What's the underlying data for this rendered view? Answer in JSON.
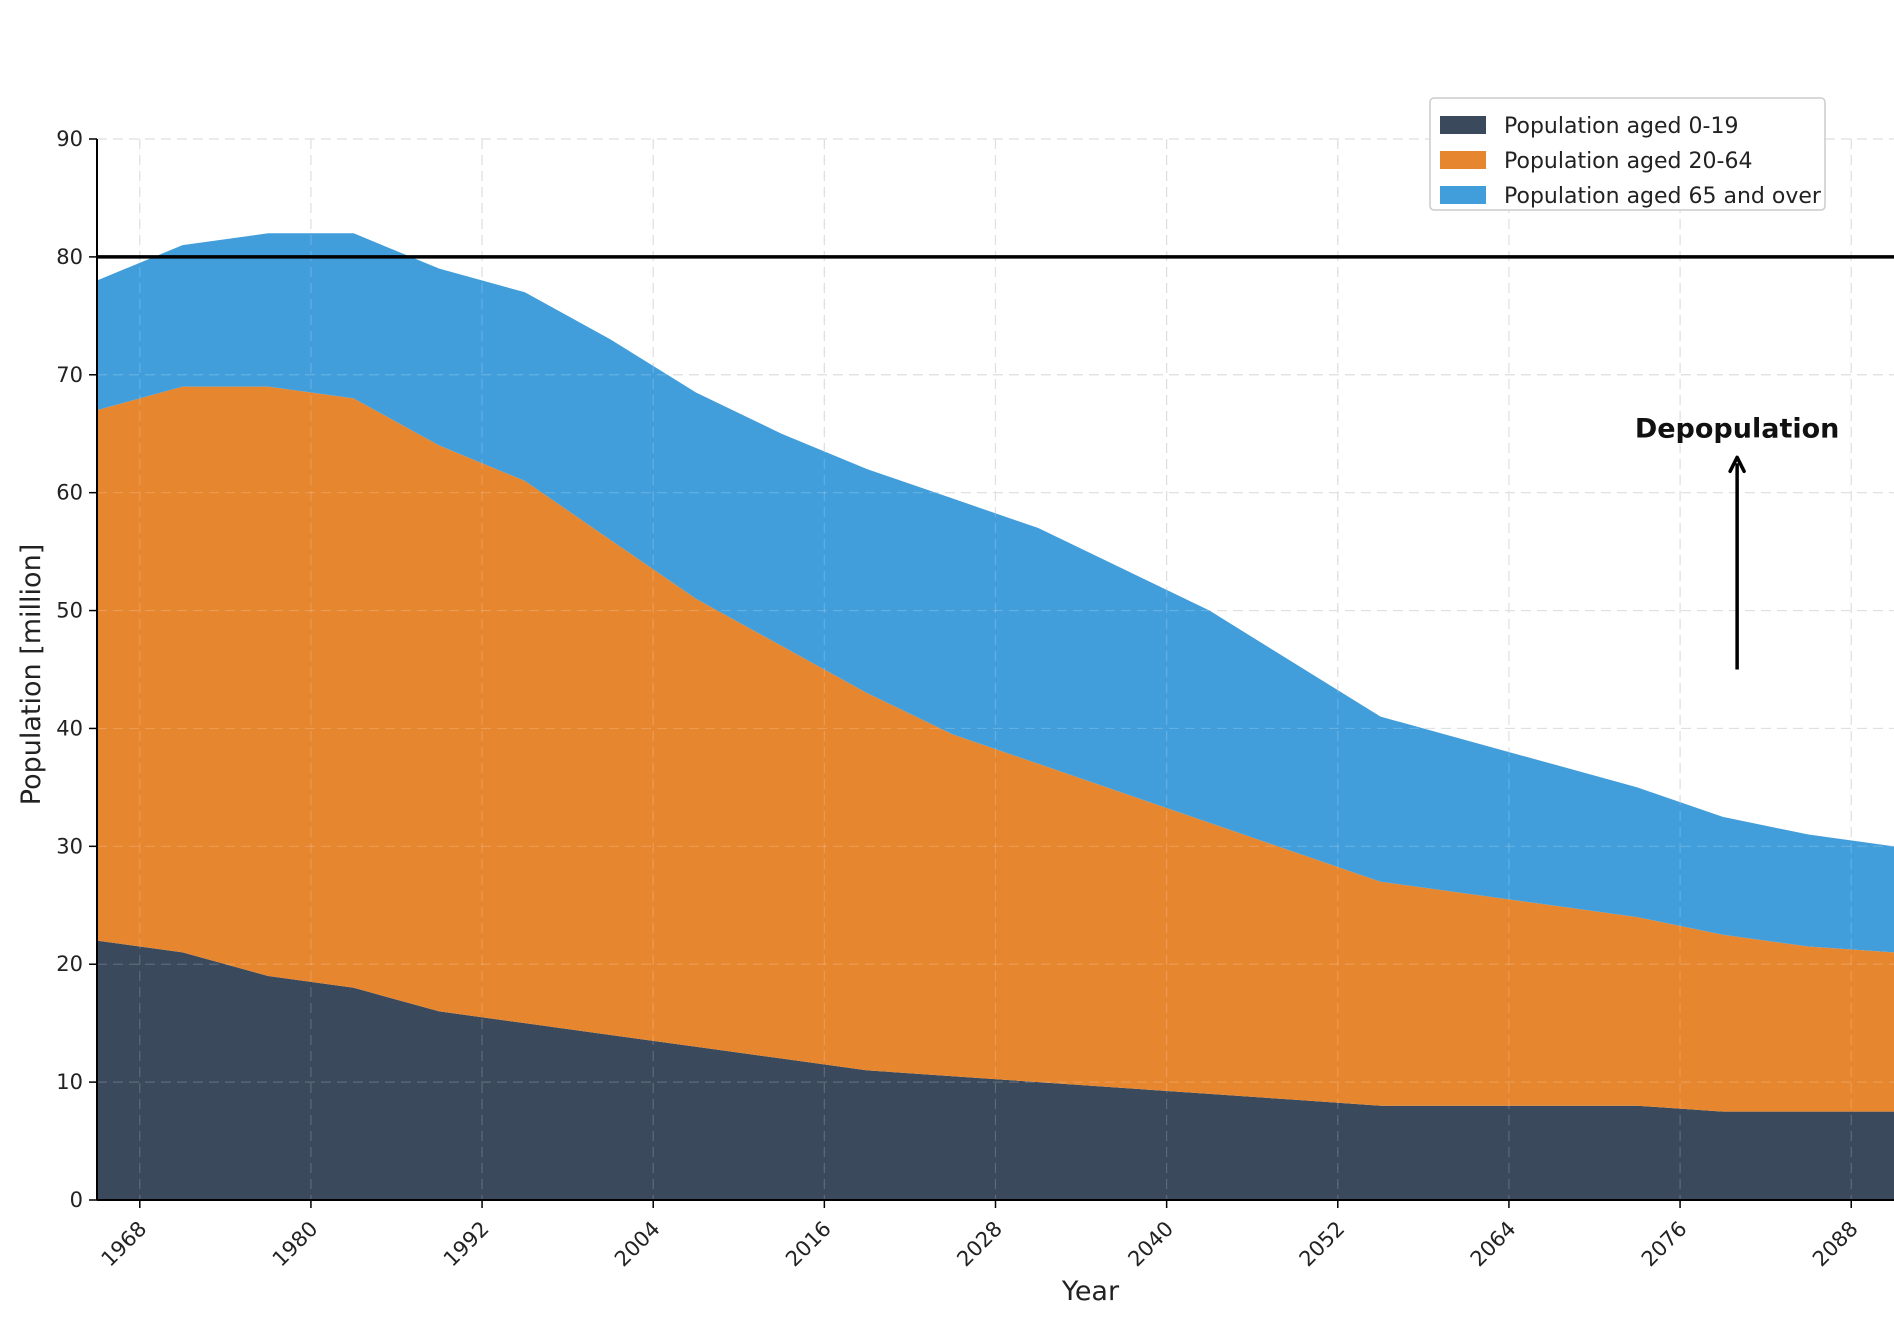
{
  "chart_data": {
    "type": "area",
    "stacked": true,
    "title": "",
    "xlabel": "Year",
    "ylabel": "Population [million]",
    "xlim": [
      1965,
      2091
    ],
    "ylim": [
      0,
      90
    ],
    "xticks": [
      1968,
      1980,
      1992,
      2004,
      2016,
      2028,
      2040,
      2052,
      2064,
      2076,
      2088
    ],
    "yticks": [
      0,
      10,
      20,
      30,
      40,
      50,
      60,
      70,
      80,
      90
    ],
    "grid": true,
    "legend_position": "top-right",
    "x": [
      1965,
      1971,
      1977,
      1983,
      1989,
      1995,
      2001,
      2007,
      2013,
      2019,
      2025,
      2031,
      2037,
      2043,
      2049,
      2055,
      2061,
      2067,
      2073,
      2079,
      2085,
      2091
    ],
    "series": [
      {
        "name": "Population aged 0-19",
        "color": "#3a4a5c",
        "values": [
          22,
          21,
          19,
          18,
          16,
          15,
          14,
          13,
          12,
          11,
          10.5,
          10,
          9.5,
          9,
          8.5,
          8,
          8,
          8,
          8,
          7.5,
          7.5,
          7.5
        ]
      },
      {
        "name": "Population aged 20-64",
        "color": "#e6862f",
        "values": [
          45,
          48,
          50,
          50,
          48,
          46,
          42,
          38,
          35,
          32,
          29,
          27,
          25,
          23,
          21,
          19,
          18,
          17,
          16,
          15,
          14,
          13.5
        ]
      },
      {
        "name": "Population aged 65 and over",
        "color": "#429edb",
        "values": [
          11,
          12,
          13,
          14,
          15,
          16,
          17,
          17.5,
          18,
          19,
          20,
          20,
          19,
          18,
          16,
          14,
          13,
          12,
          11,
          10,
          9.5,
          9
        ]
      }
    ],
    "reference_line": {
      "y": 80,
      "color": "#000000"
    },
    "annotation": {
      "text": "Depopulation",
      "arrow_x": 2080,
      "arrow_from_y": 45,
      "arrow_to_y": 63
    }
  }
}
